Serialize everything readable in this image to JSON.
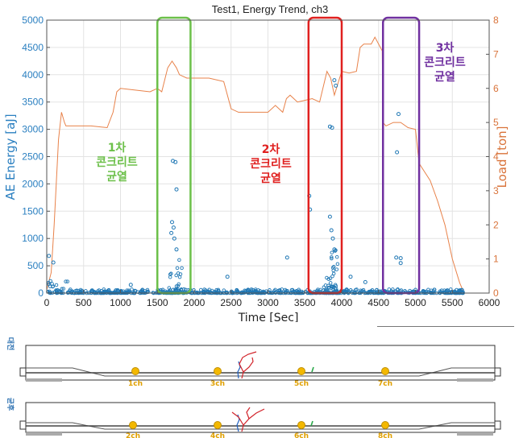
{
  "chart_data": {
    "type": "scatter",
    "title": "Test1, Energy Trend, ch3",
    "xlabel": "Time [Sec]",
    "ylabel_left": "AE Energy [aJ]",
    "ylabel_right": "Load [ton]",
    "xlim": [
      0,
      6000
    ],
    "ylim_left": [
      0,
      5000
    ],
    "ylim_right": [
      0,
      8
    ],
    "x_ticks": [
      0,
      500,
      1000,
      1500,
      2000,
      2500,
      3000,
      3500,
      4000,
      4500,
      5000,
      5500,
      6000
    ],
    "y_left_ticks": [
      0,
      500,
      1000,
      1500,
      2000,
      2500,
      3000,
      3500,
      4000,
      4500,
      5000
    ],
    "y_right_ticks": [
      0,
      1,
      2,
      3,
      4,
      5,
      6,
      7,
      8
    ],
    "grid": true,
    "colors": {
      "energy": "#1f77b4",
      "load": "#e8824a",
      "box1": "#6cc04a",
      "box2": "#e0201f",
      "box3": "#7030a0"
    },
    "series": [
      {
        "axis": "right",
        "kind": "line",
        "points": [
          [
            0,
            0.1
          ],
          [
            60,
            0.6
          ],
          [
            100,
            2.0
          ],
          [
            160,
            4.5
          ],
          [
            200,
            5.3
          ],
          [
            240,
            5.0
          ],
          [
            260,
            4.9
          ],
          [
            400,
            4.9
          ],
          [
            600,
            4.9
          ],
          [
            820,
            4.85
          ],
          [
            900,
            5.3
          ],
          [
            950,
            5.9
          ],
          [
            1000,
            6.0
          ],
          [
            1200,
            5.95
          ],
          [
            1400,
            5.9
          ],
          [
            1500,
            6.0
          ],
          [
            1560,
            5.9
          ],
          [
            1640,
            6.6
          ],
          [
            1700,
            6.8
          ],
          [
            1760,
            6.6
          ],
          [
            1800,
            6.4
          ],
          [
            1900,
            6.3
          ],
          [
            2000,
            6.3
          ],
          [
            2200,
            6.3
          ],
          [
            2400,
            6.2
          ],
          [
            2500,
            5.4
          ],
          [
            2600,
            5.3
          ],
          [
            2800,
            5.3
          ],
          [
            3000,
            5.3
          ],
          [
            3100,
            5.5
          ],
          [
            3200,
            5.3
          ],
          [
            3250,
            5.7
          ],
          [
            3300,
            5.8
          ],
          [
            3400,
            5.6
          ],
          [
            3500,
            5.65
          ],
          [
            3600,
            5.7
          ],
          [
            3700,
            5.6
          ],
          [
            3800,
            6.5
          ],
          [
            3850,
            6.3
          ],
          [
            3900,
            5.8
          ],
          [
            4000,
            6.5
          ],
          [
            4100,
            6.45
          ],
          [
            4200,
            6.5
          ],
          [
            4250,
            7.2
          ],
          [
            4300,
            7.3
          ],
          [
            4400,
            7.3
          ],
          [
            4450,
            7.5
          ],
          [
            4550,
            7.1
          ],
          [
            4560,
            5.0
          ],
          [
            4600,
            4.9
          ],
          [
            4700,
            5.0
          ],
          [
            4800,
            5.0
          ],
          [
            4900,
            4.85
          ],
          [
            5000,
            4.8
          ],
          [
            5050,
            3.8
          ],
          [
            5200,
            3.3
          ],
          [
            5300,
            2.7
          ],
          [
            5400,
            2.0
          ],
          [
            5500,
            1.0
          ],
          [
            5600,
            0.3
          ],
          [
            5650,
            0.05
          ]
        ]
      },
      {
        "axis": "left",
        "kind": "scatter",
        "points": [
          [
            1710,
            2420
          ],
          [
            1745,
            2400
          ],
          [
            1760,
            1900
          ],
          [
            1700,
            1300
          ],
          [
            1720,
            1200
          ],
          [
            1690,
            1100
          ],
          [
            1730,
            1000
          ],
          [
            1760,
            800
          ],
          [
            3560,
            1780
          ],
          [
            3570,
            1530
          ],
          [
            3840,
            3050
          ],
          [
            3870,
            3030
          ],
          [
            3900,
            3900
          ],
          [
            3920,
            3800
          ],
          [
            3840,
            1400
          ],
          [
            3860,
            1150
          ],
          [
            3880,
            1000
          ],
          [
            3900,
            800
          ],
          [
            4750,
            2580
          ],
          [
            4770,
            3280
          ],
          [
            4800,
            640
          ],
          [
            4740,
            650
          ],
          [
            4800,
            550
          ],
          [
            3260,
            650
          ],
          [
            30,
            680
          ],
          [
            90,
            560
          ],
          [
            4120,
            300
          ],
          [
            4320,
            200
          ],
          [
            2450,
            300
          ],
          [
            1140,
            150
          ]
        ]
      }
    ],
    "dense_bands": [
      [
        0,
        300,
        230
      ],
      [
        300,
        5600,
        70
      ],
      [
        1650,
        1850,
        650
      ],
      [
        3750,
        3950,
        500
      ],
      [
        3850,
        3950,
        900
      ],
      [
        5580,
        5650,
        60
      ]
    ],
    "annotations": {
      "box1": {
        "line1": "1차",
        "line2": "콘크리트",
        "line3": "균열",
        "x_range": [
          1500,
          1950
        ]
      },
      "box2": {
        "line1": "2차",
        "line2": "콘크리트",
        "line3": "균열",
        "x_range": [
          3550,
          4000
        ]
      },
      "box3": {
        "line1": "3차",
        "line2": "콘크리트",
        "line3": "균열",
        "x_range": [
          4560,
          5050
        ]
      }
    }
  },
  "beam_before": {
    "side_label": "대전",
    "channels": [
      "1ch",
      "3ch",
      "5ch",
      "7ch"
    ]
  },
  "beam_after": {
    "side_label": "균후",
    "channels": [
      "2ch",
      "4ch",
      "6ch",
      "8ch"
    ]
  }
}
